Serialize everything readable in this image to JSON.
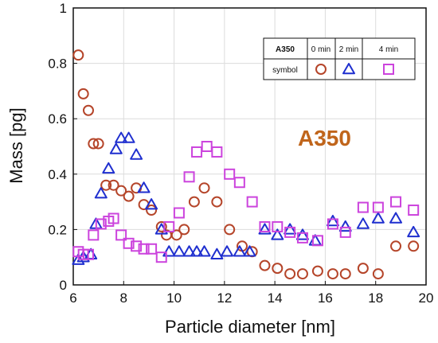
{
  "chart_data": {
    "type": "scatter",
    "title": "",
    "xlabel": "Particle diameter [nm]",
    "ylabel": "Mass [pg]",
    "xlim": [
      6,
      20
    ],
    "ylim": [
      0,
      1
    ],
    "x_ticks": [
      "6",
      "8",
      "10",
      "12",
      "14",
      "16",
      "18",
      "20"
    ],
    "y_ticks": [
      "0",
      "0.2",
      "0.4",
      "0.6",
      "0.8",
      "1"
    ],
    "grid": true,
    "annotation": "A350",
    "annotation_color": "#c0651b",
    "legend": {
      "placement": "top-right",
      "header": "A350",
      "row_label": "symbol",
      "columns": [
        "0 min",
        "2 min",
        "4 min"
      ]
    },
    "series": [
      {
        "name": "0 min",
        "marker": "circle",
        "color": "#b5452a",
        "points": [
          [
            6.2,
            0.83
          ],
          [
            6.4,
            0.69
          ],
          [
            6.6,
            0.63
          ],
          [
            6.8,
            0.51
          ],
          [
            7.0,
            0.51
          ],
          [
            7.3,
            0.36
          ],
          [
            7.6,
            0.36
          ],
          [
            7.9,
            0.34
          ],
          [
            8.2,
            0.32
          ],
          [
            8.5,
            0.35
          ],
          [
            8.8,
            0.29
          ],
          [
            9.1,
            0.27
          ],
          [
            9.5,
            0.21
          ],
          [
            9.7,
            0.18
          ],
          [
            10.1,
            0.18
          ],
          [
            10.4,
            0.2
          ],
          [
            10.8,
            0.3
          ],
          [
            11.2,
            0.35
          ],
          [
            11.7,
            0.3
          ],
          [
            12.2,
            0.2
          ],
          [
            12.7,
            0.14
          ],
          [
            13.1,
            0.12
          ],
          [
            13.6,
            0.07
          ],
          [
            14.1,
            0.06
          ],
          [
            14.6,
            0.04
          ],
          [
            15.1,
            0.04
          ],
          [
            15.7,
            0.05
          ],
          [
            16.3,
            0.04
          ],
          [
            16.8,
            0.04
          ],
          [
            17.5,
            0.06
          ],
          [
            18.1,
            0.04
          ],
          [
            18.8,
            0.14
          ],
          [
            19.5,
            0.14
          ]
        ]
      },
      {
        "name": "2 min",
        "marker": "triangle",
        "color": "#1f2fcf",
        "points": [
          [
            6.2,
            0.09
          ],
          [
            6.4,
            0.1
          ],
          [
            6.7,
            0.11
          ],
          [
            6.9,
            0.22
          ],
          [
            7.1,
            0.33
          ],
          [
            7.4,
            0.42
          ],
          [
            7.7,
            0.49
          ],
          [
            7.9,
            0.53
          ],
          [
            8.2,
            0.53
          ],
          [
            8.5,
            0.47
          ],
          [
            8.8,
            0.35
          ],
          [
            9.1,
            0.29
          ],
          [
            9.5,
            0.2
          ],
          [
            9.8,
            0.12
          ],
          [
            10.2,
            0.12
          ],
          [
            10.6,
            0.12
          ],
          [
            10.9,
            0.12
          ],
          [
            11.2,
            0.12
          ],
          [
            11.7,
            0.11
          ],
          [
            12.1,
            0.12
          ],
          [
            12.6,
            0.12
          ],
          [
            13.0,
            0.12
          ],
          [
            13.6,
            0.2
          ],
          [
            14.1,
            0.18
          ],
          [
            14.6,
            0.2
          ],
          [
            15.1,
            0.18
          ],
          [
            15.6,
            0.16
          ],
          [
            16.3,
            0.23
          ],
          [
            16.8,
            0.21
          ],
          [
            17.5,
            0.22
          ],
          [
            18.1,
            0.24
          ],
          [
            18.8,
            0.24
          ],
          [
            19.5,
            0.19
          ]
        ]
      },
      {
        "name": "4 min",
        "marker": "square",
        "color": "#cc44dd",
        "points": [
          [
            6.2,
            0.12
          ],
          [
            6.4,
            0.11
          ],
          [
            6.6,
            0.11
          ],
          [
            6.8,
            0.18
          ],
          [
            7.1,
            0.22
          ],
          [
            7.4,
            0.23
          ],
          [
            7.6,
            0.24
          ],
          [
            7.9,
            0.18
          ],
          [
            8.2,
            0.15
          ],
          [
            8.5,
            0.14
          ],
          [
            8.8,
            0.13
          ],
          [
            9.1,
            0.13
          ],
          [
            9.5,
            0.1
          ],
          [
            9.8,
            0.21
          ],
          [
            10.2,
            0.26
          ],
          [
            10.6,
            0.39
          ],
          [
            10.9,
            0.48
          ],
          [
            11.3,
            0.5
          ],
          [
            11.7,
            0.48
          ],
          [
            12.2,
            0.4
          ],
          [
            12.6,
            0.37
          ],
          [
            13.1,
            0.3
          ],
          [
            13.6,
            0.21
          ],
          [
            14.1,
            0.21
          ],
          [
            14.6,
            0.19
          ],
          [
            15.1,
            0.17
          ],
          [
            15.7,
            0.16
          ],
          [
            16.3,
            0.22
          ],
          [
            16.8,
            0.19
          ],
          [
            17.5,
            0.28
          ],
          [
            18.1,
            0.28
          ],
          [
            18.8,
            0.3
          ],
          [
            19.5,
            0.27
          ]
        ]
      }
    ]
  }
}
